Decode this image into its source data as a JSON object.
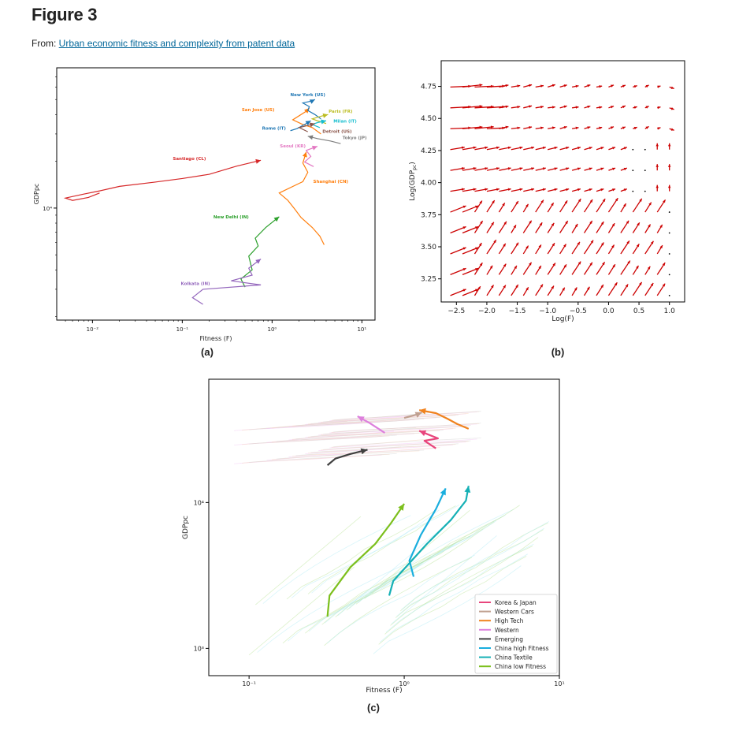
{
  "header": {
    "title": "Figure 3",
    "from_prefix": "From: ",
    "from_link": "Urban economic fitness and complexity from patent data"
  },
  "chart_data": [
    {
      "type": "line",
      "panel_label": "(a)",
      "xlabel": "Fitness (F)",
      "ylabel": "GDPpc",
      "xscale": "log",
      "yscale": "log",
      "xlim": [
        0.004,
        14
      ],
      "ylim": [
        1900,
        80000
      ],
      "x_ticks": [
        {
          "v": 0.01,
          "label": "10⁻²"
        },
        {
          "v": 0.1,
          "label": "10⁻¹"
        },
        {
          "v": 1,
          "label": "10⁰"
        },
        {
          "v": 10,
          "label": "10¹"
        }
      ],
      "y_ticks": [
        {
          "v": 10000,
          "label": "10⁴"
        }
      ],
      "series": [
        {
          "name": "Santiago (CL)",
          "color": "#d62728",
          "x": [
            0.012,
            0.009,
            0.006,
            0.005,
            0.008,
            0.012,
            0.02,
            0.05,
            0.1,
            0.2,
            0.4,
            0.75
          ],
          "y": [
            12500,
            11700,
            11200,
            11600,
            12300,
            12900,
            13800,
            14700,
            15500,
            16500,
            18600,
            20300
          ],
          "label_at": [
            0.12,
            20400
          ]
        },
        {
          "name": "New Delhi (IN)",
          "color": "#2ca02c",
          "x": [
            0.5,
            0.45,
            0.6,
            0.55,
            0.7,
            0.65,
            0.85,
            1.2
          ],
          "y": [
            3100,
            3500,
            4000,
            4900,
            5700,
            6400,
            7500,
            8800
          ],
          "label_at": [
            0.35,
            8600
          ]
        },
        {
          "name": "Kolkata (IN)",
          "color": "#9467bd",
          "x": [
            0.17,
            0.13,
            0.17,
            0.75,
            0.35,
            0.6,
            0.55,
            0.75
          ],
          "y": [
            2400,
            2650,
            3000,
            3200,
            3400,
            3700,
            4100,
            4700
          ],
          "label_at": [
            0.14,
            3200
          ]
        },
        {
          "name": "Shanghai (CN)",
          "color": "#ff7f0e",
          "x": [
            3.8,
            3.4,
            2.8,
            2.1,
            1.8,
            1.5,
            1.2,
            2.2,
            2.5,
            2.2,
            2.4
          ],
          "y": [
            5800,
            6600,
            7500,
            8700,
            9800,
            11200,
            12500,
            14800,
            17000,
            19500,
            23000
          ],
          "label_at": [
            4.5,
            14500
          ]
        },
        {
          "name": "Seoul (KR)",
          "color": "#e377c2",
          "x": [
            2.9,
            2.3,
            2.7,
            2.4,
            3.2
          ],
          "y": [
            18500,
            19800,
            21500,
            23500,
            25000
          ],
          "label_at": [
            1.7,
            24500
          ]
        },
        {
          "name": "San Jose (US)",
          "color": "#ff7f0e",
          "x": [
            3.5,
            2.8,
            2.2,
            1.7,
            2.4,
            2.6
          ],
          "y": [
            30000,
            33000,
            34500,
            37000,
            42000,
            44000
          ],
          "label_at": [
            0.7,
            42000
          ]
        },
        {
          "name": "New York (US)",
          "color": "#1f77b4",
          "x": [
            3.5,
            3.0,
            2.5,
            2.6,
            2.2,
            2.8,
            3.0
          ],
          "y": [
            37500,
            40000,
            42500,
            45000,
            47500,
            49000,
            50000
          ],
          "label_at": [
            2.5,
            52500
          ]
        },
        {
          "name": "Paris (FR)",
          "color": "#bcbd22",
          "x": [
            4.0,
            3.2,
            2.8,
            3.5,
            4.2
          ],
          "y": [
            35000,
            36500,
            37500,
            39000,
            40000
          ],
          "label_at": [
            5.8,
            41000
          ]
        },
        {
          "name": "Milan (IT)",
          "color": "#17becf",
          "x": [
            3.4,
            2.8,
            3.2,
            4.0
          ],
          "y": [
            33000,
            34500,
            35500,
            36500
          ],
          "label_at": [
            6.5,
            35500
          ]
        },
        {
          "name": "Rome (IT)",
          "color": "#1f77b4",
          "x": [
            1.6,
            1.9,
            2.3,
            2.7
          ],
          "y": [
            31500,
            32500,
            34500,
            36500
          ],
          "label_at": [
            1.05,
            32000
          ]
        },
        {
          "name": "Detroit (US)",
          "color": "#8c564b",
          "x": [
            2.5,
            2.0,
            2.5,
            3.0
          ],
          "y": [
            31000,
            33000,
            34000,
            35000
          ],
          "label_at": [
            5.3,
            30500
          ]
        },
        {
          "name": "Tokyo (JP)",
          "color": "#7f7f7f",
          "x": [
            5.8,
            4.5,
            3.2,
            2.5
          ],
          "y": [
            26000,
            27000,
            28000,
            29000
          ],
          "label_at": [
            8.3,
            27800
          ]
        }
      ]
    },
    {
      "type": "quiver",
      "panel_label": "(b)",
      "xlabel": "Log(F)",
      "ylabel": "Log(GDP",
      "ylabel_sub": "pc",
      "ylabel_close": ")",
      "xlim": [
        -2.75,
        1.25
      ],
      "ylim": [
        3.07,
        4.95
      ],
      "x_ticks": [
        {
          "v": -2.5,
          "label": "−2.5"
        },
        {
          "v": -2.0,
          "label": "−2.0"
        },
        {
          "v": -1.5,
          "label": "−1.5"
        },
        {
          "v": -1.0,
          "label": "−1.0"
        },
        {
          "v": -0.5,
          "label": "−0.5"
        },
        {
          "v": 0.0,
          "label": "0.0"
        },
        {
          "v": 0.5,
          "label": "0.5"
        },
        {
          "v": 1.0,
          "label": "1.0"
        }
      ],
      "y_ticks": [
        {
          "v": 3.25,
          "label": "3.25"
        },
        {
          "v": 3.5,
          "label": "3.50"
        },
        {
          "v": 3.75,
          "label": "3.75"
        },
        {
          "v": 4.0,
          "label": "4.00"
        },
        {
          "v": 4.25,
          "label": "4.25"
        },
        {
          "v": 4.5,
          "label": "4.50"
        },
        {
          "v": 4.75,
          "label": "4.75"
        }
      ],
      "arrow_color": "#cc0000"
    },
    {
      "type": "line",
      "panel_label": "(c)",
      "xlabel": "Fitness (F)",
      "ylabel": "GDPpc",
      "xscale": "log",
      "yscale": "log",
      "xlim": [
        0.055,
        10
      ],
      "ylim": [
        650,
        70000
      ],
      "x_ticks": [
        {
          "v": 0.1,
          "label": "10⁻¹"
        },
        {
          "v": 1,
          "label": "10⁰"
        },
        {
          "v": 10,
          "label": "10¹"
        }
      ],
      "y_ticks": [
        {
          "v": 1000,
          "label": "10³"
        },
        {
          "v": 10000,
          "label": "10⁴"
        }
      ],
      "legend_position": "lower-right",
      "series": [
        {
          "name": "Korea & Japan",
          "color": "#e8457c",
          "x": [
            1.6,
            1.35,
            1.65,
            1.4,
            1.25
          ],
          "y": [
            23500,
            26500,
            27500,
            29500,
            31000
          ]
        },
        {
          "name": "Western Cars",
          "color": "#c0a090",
          "x": [
            1.0,
            1.2,
            1.3
          ],
          "y": [
            38000,
            40000,
            41500
          ]
        },
        {
          "name": "High Tech",
          "color": "#f0821e",
          "x": [
            2.6,
            2.2,
            1.9,
            1.6,
            1.25
          ],
          "y": [
            32000,
            34500,
            37500,
            41000,
            43000
          ]
        },
        {
          "name": "Western",
          "color": "#dd80dd",
          "x": [
            0.75,
            0.6,
            0.5
          ],
          "y": [
            30000,
            35000,
            39000
          ]
        },
        {
          "name": "Emerging",
          "color": "#404040",
          "x": [
            0.32,
            0.36,
            0.45,
            0.58
          ],
          "y": [
            18000,
            20000,
            21500,
            23000
          ]
        },
        {
          "name": "China high Fitness",
          "color": "#1aaede",
          "x": [
            1.15,
            1.08,
            1.28,
            1.6,
            1.85
          ],
          "y": [
            3100,
            4000,
            6000,
            9000,
            12500
          ]
        },
        {
          "name": "China Textile",
          "color": "#15b0b5",
          "x": [
            0.8,
            0.85,
            1.4,
            2.0,
            2.5,
            2.6
          ],
          "y": [
            2300,
            2900,
            5200,
            7600,
            10300,
            13000
          ]
        },
        {
          "name": "China low Fitness",
          "color": "#7cbf1c",
          "x": [
            0.32,
            0.33,
            0.45,
            0.65,
            0.82,
            1.0
          ],
          "y": [
            1650,
            2300,
            3600,
            5200,
            7200,
            9800
          ]
        }
      ]
    }
  ]
}
